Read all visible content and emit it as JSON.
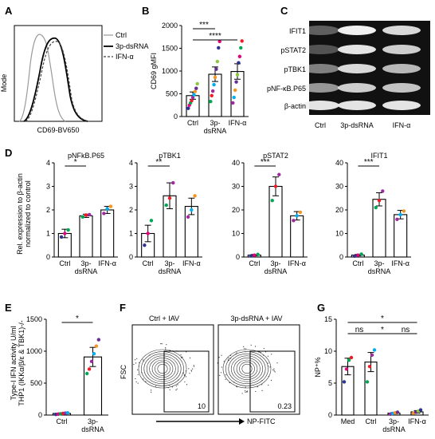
{
  "panels": {
    "A": "A",
    "B": "B",
    "C": "C",
    "D": "D",
    "E": "E",
    "F": "F",
    "G": "G"
  },
  "panelA": {
    "xlabel": "CD69-BV650",
    "ylabel": "Mode",
    "legend": [
      "Ctrl",
      "3p-dsRNA",
      "IFN-α"
    ]
  },
  "chart_data": [
    {
      "id": "B",
      "type": "bar",
      "ylabel": "CD69 gMFI",
      "ylim": [
        0,
        2000
      ],
      "yticks": [
        "0",
        "500",
        "1000",
        "1500",
        "2000"
      ],
      "categories": [
        "Ctrl",
        "3p-\ndsRNA",
        "IFN-α"
      ],
      "cat_lines": [
        [
          "Ctrl"
        ],
        [
          "3p-",
          "dsRNA"
        ],
        [
          "IFN-α"
        ]
      ],
      "values": [
        460,
        930,
        990
      ],
      "errors": [
        80,
        160,
        170
      ],
      "points": [
        [
          180,
          250,
          300,
          350,
          420,
          480,
          550,
          620,
          720
        ],
        [
          330,
          460,
          560,
          700,
          860,
          1040,
          1210,
          1510,
          1650
        ],
        [
          300,
          420,
          580,
          760,
          920,
          1180,
          1320,
          1510,
          1660
        ]
      ],
      "sig": [
        {
          "from": 0,
          "to": 1,
          "label": "***"
        },
        {
          "from": 0,
          "to": 2,
          "label": "****"
        }
      ]
    },
    {
      "id": "D1",
      "type": "bar",
      "title": "pNFkB.P65",
      "ylim": [
        0,
        4
      ],
      "yticks": [
        "0",
        "1",
        "2",
        "3",
        "4"
      ],
      "cat_lines": [
        [
          "Ctrl"
        ],
        [
          "3p-",
          "dsRNA"
        ],
        [
          "IFN-α"
        ]
      ],
      "values": [
        1.0,
        1.75,
        2.0
      ],
      "errors": [
        0.18,
        0.07,
        0.15
      ],
      "points": [
        [
          0.85,
          1.0,
          1.15
        ],
        [
          1.7,
          1.78,
          1.8
        ],
        [
          1.85,
          2.05,
          2.15
        ]
      ],
      "sig": [
        {
          "from": 0,
          "to": 1,
          "label": "*"
        }
      ]
    },
    {
      "id": "D2",
      "type": "bar",
      "title": "pTBK1",
      "ylim": [
        0,
        4
      ],
      "yticks": [
        "0",
        "1",
        "2",
        "3",
        "4"
      ],
      "cat_lines": [
        [
          "Ctrl"
        ],
        [
          "3p-",
          "dsRNA"
        ],
        [
          "IFN-α"
        ]
      ],
      "values": [
        1.0,
        2.6,
        2.15
      ],
      "errors": [
        0.35,
        0.55,
        0.35
      ],
      "points": [
        [
          0.5,
          1.0,
          1.55
        ],
        [
          2.2,
          2.5,
          3.15
        ],
        [
          1.7,
          2.0,
          2.6
        ]
      ],
      "sig": [
        {
          "from": 0,
          "to": 1,
          "label": "**"
        }
      ]
    },
    {
      "id": "D3",
      "type": "bar",
      "title": "pSTAT2",
      "ylim": [
        0,
        40
      ],
      "yticks": [
        "0",
        "10",
        "20",
        "30",
        "40"
      ],
      "cat_lines": [
        [
          "Ctrl"
        ],
        [
          "3p-",
          "dsRNA"
        ],
        [
          "IFN-α"
        ]
      ],
      "values": [
        0.8,
        30,
        17.5
      ],
      "errors": [
        0.3,
        4,
        1.8
      ],
      "points": [
        [
          0.5,
          0.8,
          1.1
        ],
        [
          24,
          30,
          35
        ],
        [
          15.5,
          17.5,
          19
        ]
      ],
      "sig": [
        {
          "from": 0,
          "to": 1,
          "label": "***"
        }
      ]
    },
    {
      "id": "D4",
      "type": "bar",
      "title": "IFIT1",
      "ylim": [
        0,
        40
      ],
      "yticks": [
        "0",
        "10",
        "20",
        "30",
        "40"
      ],
      "cat_lines": [
        [
          "Ctrl"
        ],
        [
          "3p-",
          "dsRNA"
        ],
        [
          "IFN-α"
        ]
      ],
      "values": [
        0.8,
        24.5,
        18
      ],
      "errors": [
        0.3,
        2.8,
        1.8
      ],
      "points": [
        [
          0.4,
          0.8,
          1.2
        ],
        [
          21,
          24,
          28
        ],
        [
          16,
          18,
          19.5
        ]
      ],
      "sig": [
        {
          "from": 0,
          "to": 1,
          "label": "***"
        }
      ]
    },
    {
      "id": "E",
      "type": "bar",
      "ylim": [
        0,
        1500
      ],
      "yticks": [
        "0",
        "500",
        "1000",
        "1500"
      ],
      "cat_lines": [
        [
          "Ctrl"
        ],
        [
          "3p-",
          "dsRNA"
        ]
      ],
      "values": [
        25,
        910
      ],
      "errors": [
        8,
        150
      ],
      "points": [
        [
          10,
          15,
          20,
          25,
          30,
          35
        ],
        [
          650,
          720,
          840,
          960,
          1080,
          1180
        ]
      ],
      "sig": [
        {
          "from": 0,
          "to": 1,
          "label": "*"
        }
      ]
    },
    {
      "id": "G",
      "type": "bar",
      "ylabel": "NP⁺%",
      "ylim": [
        0,
        15
      ],
      "yticks": [
        "0",
        "5",
        "10",
        "15"
      ],
      "cat_lines": [
        [
          "Med"
        ],
        [
          "Ctrl"
        ],
        [
          "3p-",
          "dsRNA"
        ],
        [
          "IFN-α"
        ]
      ],
      "values": [
        7.6,
        8.3,
        0.3,
        0.5
      ],
      "errors": [
        1.3,
        1.5,
        0.1,
        0.2
      ],
      "points": [
        [
          5.2,
          7.2,
          8.6,
          9.0
        ],
        [
          5.2,
          7.6,
          9.4,
          10.2
        ],
        [
          0.15,
          0.25,
          0.35,
          0.45
        ],
        [
          0.3,
          0.45,
          0.6,
          0.8
        ]
      ],
      "sig": [
        {
          "from": 0,
          "to": 3,
          "label": "*",
          "level": 0
        },
        {
          "from": 0,
          "to": 1,
          "label": "ns",
          "level": 1
        },
        {
          "from": 1,
          "to": 2,
          "label": "*",
          "level": 1
        },
        {
          "from": 2,
          "to": 3,
          "label": "ns",
          "level": 1
        }
      ]
    }
  ],
  "panelC": {
    "rows": [
      "IFIT1",
      "pSTAT2",
      "pTBK1",
      "pNF-κB.P65",
      "β-actin"
    ],
    "lanes": [
      "Ctrl",
      "3p-dsRNA",
      "IFN-α"
    ]
  },
  "panelD": {
    "ylabel_lines": [
      "Rel. expression to β-actin",
      "normalized to control"
    ]
  },
  "panelE": {
    "ylabel_lines": [
      "Type-I IFN activity U/ml",
      "THP1 (IKKα/β/ε & TBK1)-/-"
    ]
  },
  "panelF": {
    "titles": [
      "Ctrl + IAV",
      "3p-dsRNA + IAV"
    ],
    "gates": [
      "10",
      "0.23"
    ],
    "ylabel": "FSC",
    "xlabel": "NP-FITC"
  },
  "dot_colors": [
    "#2e3192",
    "#e6007e",
    "#00a651",
    "#ed1c24",
    "#9e2a9f",
    "#00aeef",
    "#f7941d",
    "#662d91",
    "#8dc63f"
  ]
}
